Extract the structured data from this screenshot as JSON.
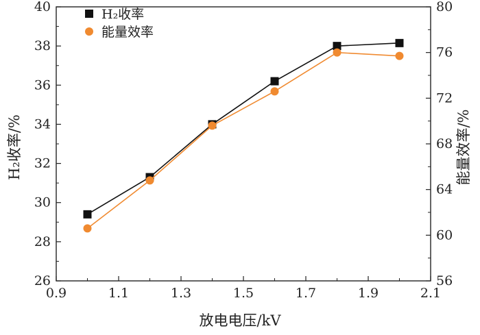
{
  "chart_data": {
    "type": "line",
    "xlabel": "放电电压/kV",
    "ylabel_left": "H₂收率/%",
    "ylabel_right": "能量效率/%",
    "xlim": [
      0.9,
      2.1
    ],
    "ylim_left": [
      26,
      40
    ],
    "ylim_right": [
      56,
      80
    ],
    "xticks": [
      "0.9",
      "1.1",
      "1.3",
      "1.5",
      "1.7",
      "1.9",
      "2.1"
    ],
    "yticks_left": [
      "26",
      "28",
      "30",
      "32",
      "34",
      "36",
      "38",
      "40"
    ],
    "yticks_right": [
      "56",
      "60",
      "64",
      "68",
      "72",
      "76",
      "80"
    ],
    "legend_position": "top-left",
    "series": [
      {
        "name": "H₂收率",
        "axis": "left",
        "marker": "square",
        "color": "#111111",
        "x": [
          1.0,
          1.2,
          1.4,
          1.6,
          1.8,
          2.0
        ],
        "y": [
          29.4,
          31.3,
          34.0,
          36.2,
          38.0,
          38.15
        ]
      },
      {
        "name": "能量效率",
        "axis": "right",
        "marker": "circle",
        "color": "#f08a30",
        "x": [
          1.0,
          1.2,
          1.4,
          1.6,
          1.8,
          2.0
        ],
        "y": [
          60.6,
          64.8,
          69.6,
          72.6,
          76.0,
          75.7
        ]
      }
    ]
  }
}
